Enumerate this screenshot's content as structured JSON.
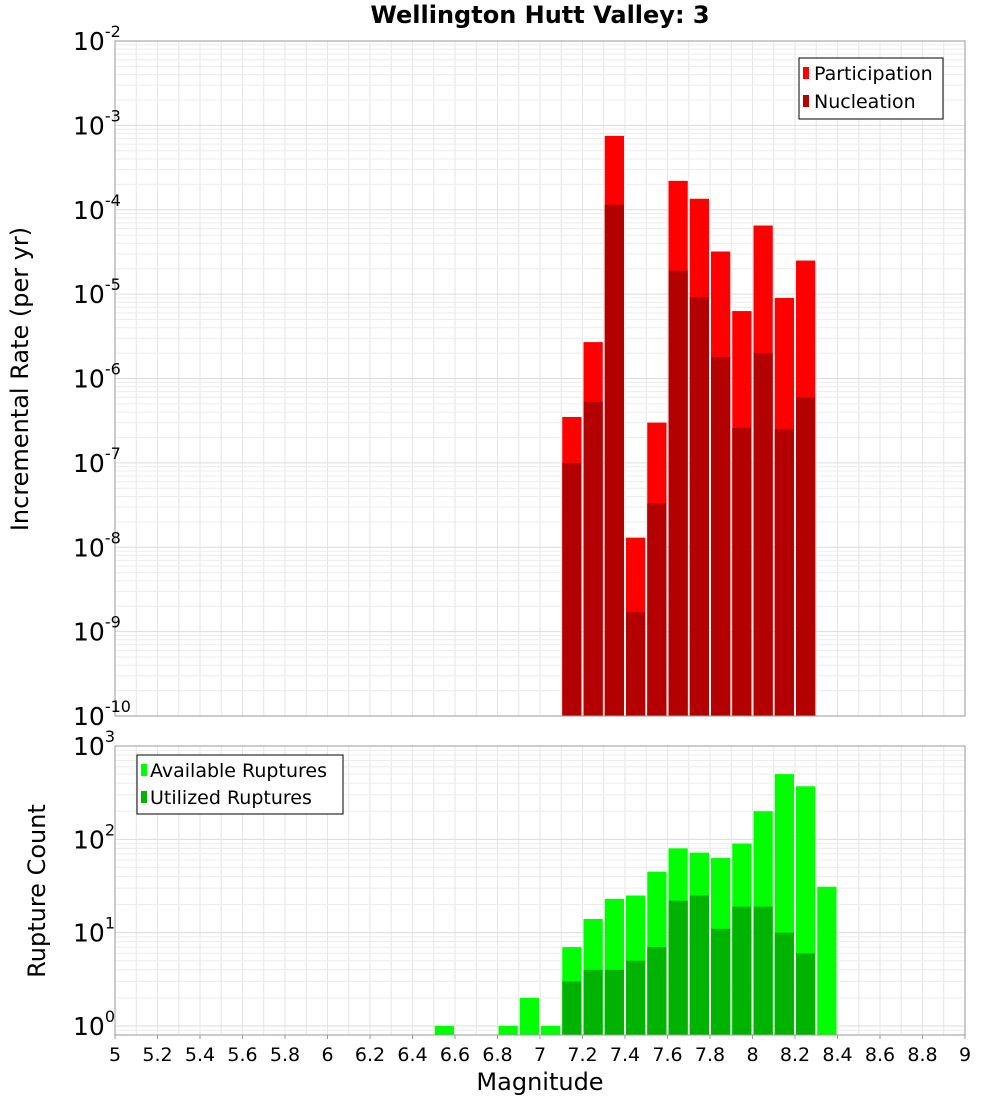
{
  "chart_data": [
    {
      "type": "bar",
      "title": "Wellington Hutt Valley: 3",
      "ylabel": "Incremental Rate (per yr)",
      "xlabel": "",
      "xlim": [
        5,
        9
      ],
      "ylim": [
        1e-10,
        0.01
      ],
      "yscale": "log",
      "grid": true,
      "legend_position": "top-right",
      "series": [
        {
          "name": "Participation",
          "color": "#ff0000",
          "x": [
            7.15,
            7.25,
            7.35,
            7.45,
            7.55,
            7.65,
            7.75,
            7.85,
            7.95,
            8.05,
            8.15,
            8.25
          ],
          "values": [
            3.5e-07,
            2.7e-06,
            0.00075,
            1.3e-08,
            3e-07,
            0.00022,
            0.000135,
            3.2e-05,
            6.3e-06,
            6.5e-05,
            9e-06,
            2.5e-05
          ]
        },
        {
          "name": "Nucleation",
          "color": "#b30000",
          "x": [
            7.15,
            7.25,
            7.35,
            7.45,
            7.55,
            7.65,
            7.75,
            7.85,
            7.95,
            8.05,
            8.15,
            8.25
          ],
          "values": [
            1e-07,
            5.3e-07,
            0.000115,
            1.7e-09,
            3.3e-08,
            1.9e-05,
            9.2e-06,
            1.8e-06,
            2.6e-07,
            2e-06,
            2.5e-07,
            6e-07
          ]
        }
      ]
    },
    {
      "type": "bar",
      "title": "",
      "ylabel": "Rupture Count",
      "xlabel": "Magnitude",
      "xlim": [
        5,
        9
      ],
      "ylim": [
        0.8,
        1000
      ],
      "yscale": "log",
      "grid": true,
      "legend_position": "top-left",
      "x_ticks": [
        "5",
        "5.2",
        "5.4",
        "5.6",
        "5.8",
        "6",
        "6.2",
        "6.4",
        "6.6",
        "6.8",
        "7",
        "7.2",
        "7.4",
        "7.6",
        "7.8",
        "8",
        "8.2",
        "8.4",
        "8.6",
        "8.8",
        "9"
      ],
      "series": [
        {
          "name": "Available Ruptures",
          "color": "#00ff00",
          "x": [
            6.55,
            6.85,
            6.95,
            7.05,
            7.15,
            7.25,
            7.35,
            7.45,
            7.55,
            7.65,
            7.75,
            7.85,
            7.95,
            8.05,
            8.15,
            8.25,
            8.35
          ],
          "values": [
            1,
            1,
            2,
            1,
            7,
            14,
            23,
            25,
            45,
            80,
            72,
            63,
            90,
            200,
            500,
            370,
            31
          ]
        },
        {
          "name": "Utilized Ruptures",
          "color": "#00b300",
          "x": [
            7.15,
            7.25,
            7.35,
            7.45,
            7.55,
            7.65,
            7.75,
            7.85,
            7.95,
            8.05,
            8.15,
            8.25
          ],
          "values": [
            3,
            4,
            4,
            5,
            7,
            22,
            25,
            11,
            19,
            19,
            10,
            6
          ]
        }
      ]
    }
  ]
}
